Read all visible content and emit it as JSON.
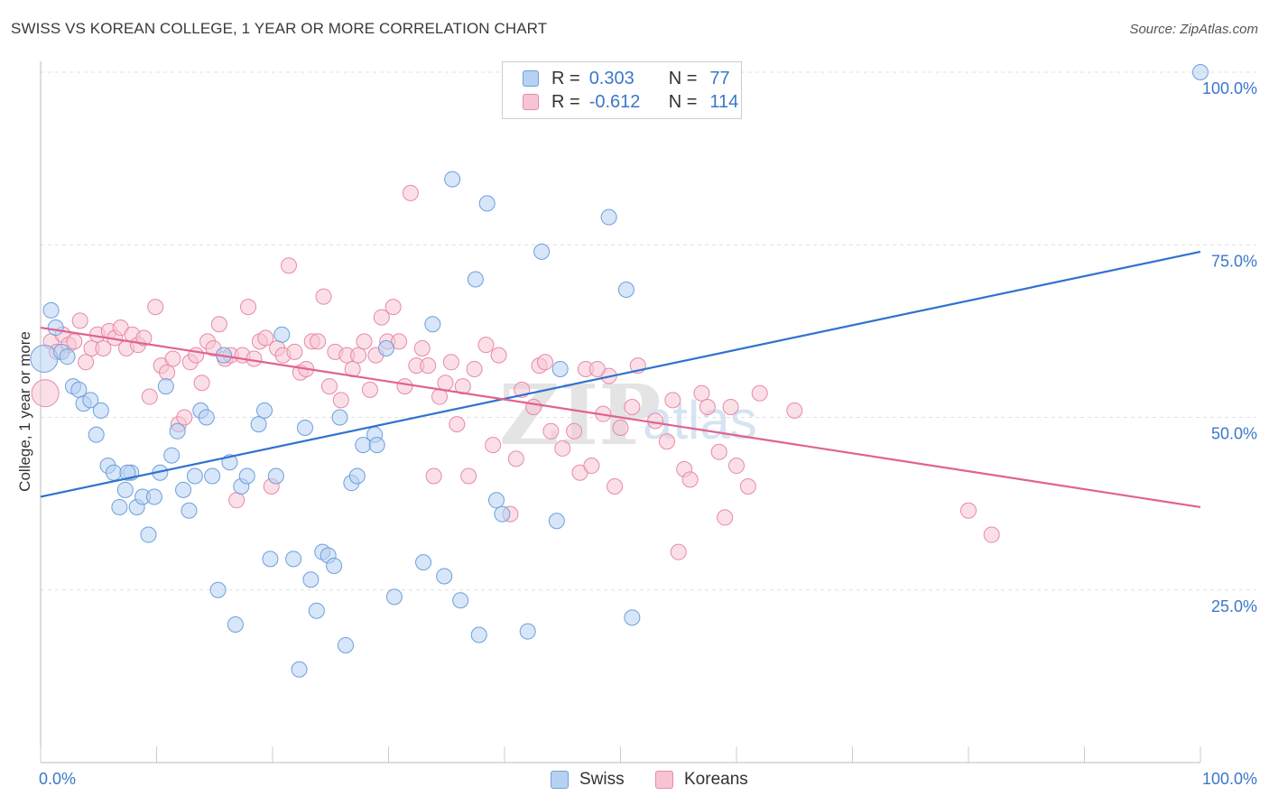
{
  "title": "SWISS VS KOREAN COLLEGE, 1 YEAR OR MORE CORRELATION CHART",
  "source": "Source: ZipAtlas.com",
  "watermark": {
    "zip": "ZIP",
    "atlas": "atlas"
  },
  "legend": {
    "r_label": "R =",
    "n_label": "N =",
    "rows": [
      {
        "r": "0.303",
        "n": "77"
      },
      {
        "r": "-0.612",
        "n": "114"
      }
    ]
  },
  "bottom_legend": [
    "Swiss",
    "Koreans"
  ],
  "colors": {
    "swiss_fill": "#b7d1f3",
    "swiss_stroke": "#6e9fdd",
    "swiss_line": "#2f72cf",
    "korean_fill": "#f8c4d4",
    "korean_stroke": "#e889a8",
    "korean_line": "#e0628e",
    "tick_label": "#3a78c9",
    "grid": "#e0e0e0"
  },
  "chart_data": {
    "type": "scatter",
    "title": "SWISS VS KOREAN COLLEGE, 1 YEAR OR MORE CORRELATION CHART",
    "xlabel": "",
    "ylabel": "College, 1 year or more",
    "xlim": [
      0,
      100
    ],
    "ylim": [
      0,
      100
    ],
    "x_tick_labels": [
      "0.0%",
      "100.0%"
    ],
    "y_ticks": [
      25,
      50,
      75,
      100
    ],
    "y_tick_labels": [
      "25.0%",
      "50.0%",
      "75.0%",
      "100.0%"
    ],
    "grid": true,
    "legend_position": "top-center",
    "series": [
      {
        "name": "Swiss",
        "r": 0.303,
        "n": 77,
        "trend": {
          "x": [
            0,
            100
          ],
          "y": [
            38.5,
            74.0
          ]
        },
        "points": [
          [
            0.3,
            58.5
          ],
          [
            0.9,
            65.5
          ],
          [
            1.3,
            63.0
          ],
          [
            1.8,
            59.5
          ],
          [
            2.3,
            58.8
          ],
          [
            2.8,
            54.5
          ],
          [
            3.3,
            54.0
          ],
          [
            3.7,
            52.0
          ],
          [
            4.3,
            52.5
          ],
          [
            4.8,
            47.5
          ],
          [
            5.2,
            51.0
          ],
          [
            5.8,
            43.0
          ],
          [
            6.3,
            42.0
          ],
          [
            6.8,
            37.0
          ],
          [
            7.3,
            39.5
          ],
          [
            7.8,
            42.0
          ],
          [
            8.3,
            37.0
          ],
          [
            8.8,
            38.5
          ],
          [
            9.3,
            33.0
          ],
          [
            9.8,
            38.5
          ],
          [
            10.3,
            42.0
          ],
          [
            10.8,
            54.5
          ],
          [
            11.3,
            44.5
          ],
          [
            11.8,
            48.0
          ],
          [
            12.3,
            39.5
          ],
          [
            12.8,
            36.5
          ],
          [
            13.3,
            41.5
          ],
          [
            13.8,
            51.0
          ],
          [
            14.3,
            50.0
          ],
          [
            14.8,
            41.5
          ],
          [
            15.3,
            25.0
          ],
          [
            15.8,
            59.0
          ],
          [
            16.3,
            43.5
          ],
          [
            16.8,
            20.0
          ],
          [
            17.3,
            40.0
          ],
          [
            17.8,
            41.5
          ],
          [
            18.8,
            49.0
          ],
          [
            19.3,
            51.0
          ],
          [
            19.8,
            29.5
          ],
          [
            20.3,
            41.5
          ],
          [
            20.8,
            62.0
          ],
          [
            21.8,
            29.5
          ],
          [
            22.3,
            13.5
          ],
          [
            22.8,
            48.5
          ],
          [
            23.3,
            26.5
          ],
          [
            23.8,
            22.0
          ],
          [
            24.3,
            30.5
          ],
          [
            24.8,
            30.0
          ],
          [
            25.3,
            28.5
          ],
          [
            25.8,
            50.0
          ],
          [
            26.3,
            17.0
          ],
          [
            26.8,
            40.5
          ],
          [
            27.3,
            41.5
          ],
          [
            27.8,
            46.0
          ],
          [
            28.8,
            47.5
          ],
          [
            29.8,
            60.0
          ],
          [
            33.0,
            29.0
          ],
          [
            33.8,
            63.5
          ],
          [
            34.8,
            27.0
          ],
          [
            35.5,
            84.5
          ],
          [
            36.2,
            23.5
          ],
          [
            37.5,
            70.0
          ],
          [
            37.8,
            18.5
          ],
          [
            38.5,
            81.0
          ],
          [
            39.3,
            38.0
          ],
          [
            39.8,
            36.0
          ],
          [
            42.0,
            19.0
          ],
          [
            43.2,
            74.0
          ],
          [
            44.8,
            57.0
          ],
          [
            44.5,
            35.0
          ],
          [
            49.0,
            79.0
          ],
          [
            50.5,
            68.5
          ],
          [
            51.0,
            21.0
          ],
          [
            30.5,
            24.0
          ],
          [
            29.0,
            46.0
          ],
          [
            7.5,
            42.0
          ],
          [
            100.0,
            100.0
          ]
        ]
      },
      {
        "name": "Koreans",
        "r": -0.612,
        "n": 114,
        "trend": {
          "x": [
            0,
            100
          ],
          "y": [
            63.0,
            37.0
          ]
        },
        "points": [
          [
            0.4,
            53.5
          ],
          [
            0.9,
            61.0
          ],
          [
            1.4,
            59.5
          ],
          [
            1.9,
            62.0
          ],
          [
            2.4,
            60.5
          ],
          [
            2.9,
            61.0
          ],
          [
            3.4,
            64.0
          ],
          [
            3.9,
            58.0
          ],
          [
            4.4,
            60.0
          ],
          [
            4.9,
            62.0
          ],
          [
            5.4,
            60.0
          ],
          [
            5.9,
            62.5
          ],
          [
            6.4,
            61.5
          ],
          [
            6.9,
            63.0
          ],
          [
            7.4,
            60.0
          ],
          [
            7.9,
            62.0
          ],
          [
            8.4,
            60.5
          ],
          [
            8.9,
            61.5
          ],
          [
            9.4,
            53.0
          ],
          [
            9.9,
            66.0
          ],
          [
            10.4,
            57.5
          ],
          [
            10.9,
            56.5
          ],
          [
            11.4,
            58.5
          ],
          [
            11.9,
            49.0
          ],
          [
            12.4,
            50.0
          ],
          [
            12.9,
            58.0
          ],
          [
            13.4,
            59.0
          ],
          [
            13.9,
            55.0
          ],
          [
            14.4,
            61.0
          ],
          [
            14.9,
            60.0
          ],
          [
            15.4,
            63.5
          ],
          [
            15.9,
            58.5
          ],
          [
            16.4,
            59.0
          ],
          [
            16.9,
            38.0
          ],
          [
            17.4,
            59.0
          ],
          [
            17.9,
            66.0
          ],
          [
            18.4,
            58.5
          ],
          [
            18.9,
            61.0
          ],
          [
            19.4,
            61.5
          ],
          [
            19.9,
            40.0
          ],
          [
            20.4,
            60.0
          ],
          [
            20.9,
            59.0
          ],
          [
            21.4,
            72.0
          ],
          [
            21.9,
            59.5
          ],
          [
            22.4,
            56.5
          ],
          [
            22.9,
            57.0
          ],
          [
            23.4,
            61.0
          ],
          [
            23.9,
            61.0
          ],
          [
            24.4,
            67.5
          ],
          [
            24.9,
            54.5
          ],
          [
            25.4,
            59.5
          ],
          [
            25.9,
            52.5
          ],
          [
            26.4,
            59.0
          ],
          [
            26.9,
            57.0
          ],
          [
            27.4,
            59.0
          ],
          [
            27.9,
            61.0
          ],
          [
            28.4,
            54.0
          ],
          [
            28.9,
            59.0
          ],
          [
            29.4,
            64.5
          ],
          [
            29.9,
            61.0
          ],
          [
            30.4,
            66.0
          ],
          [
            30.9,
            61.0
          ],
          [
            31.4,
            54.5
          ],
          [
            31.9,
            82.5
          ],
          [
            32.4,
            57.5
          ],
          [
            32.9,
            60.0
          ],
          [
            33.4,
            57.5
          ],
          [
            33.9,
            41.5
          ],
          [
            34.4,
            53.0
          ],
          [
            34.9,
            55.0
          ],
          [
            35.4,
            58.0
          ],
          [
            35.9,
            49.0
          ],
          [
            36.4,
            54.5
          ],
          [
            36.9,
            41.5
          ],
          [
            37.4,
            57.0
          ],
          [
            38.4,
            60.5
          ],
          [
            39.0,
            46.0
          ],
          [
            39.5,
            59.0
          ],
          [
            40.5,
            36.0
          ],
          [
            41.0,
            44.0
          ],
          [
            41.5,
            54.0
          ],
          [
            42.5,
            51.5
          ],
          [
            43.0,
            57.5
          ],
          [
            43.5,
            58.0
          ],
          [
            44.0,
            48.0
          ],
          [
            45.0,
            45.5
          ],
          [
            46.0,
            48.0
          ],
          [
            46.5,
            42.0
          ],
          [
            47.0,
            57.0
          ],
          [
            47.5,
            43.0
          ],
          [
            48.5,
            50.5
          ],
          [
            49.0,
            56.0
          ],
          [
            49.5,
            40.0
          ],
          [
            50.0,
            48.5
          ],
          [
            51.0,
            51.5
          ],
          [
            51.5,
            57.5
          ],
          [
            53.0,
            49.5
          ],
          [
            54.0,
            46.5
          ],
          [
            54.5,
            52.5
          ],
          [
            55.0,
            30.5
          ],
          [
            55.5,
            42.5
          ],
          [
            56.0,
            41.0
          ],
          [
            57.0,
            53.5
          ],
          [
            57.5,
            51.5
          ],
          [
            58.5,
            45.0
          ],
          [
            59.0,
            35.5
          ],
          [
            60.0,
            43.0
          ],
          [
            61.0,
            40.0
          ],
          [
            62.0,
            53.5
          ],
          [
            65.0,
            51.0
          ],
          [
            80.0,
            36.5
          ],
          [
            82.0,
            33.0
          ],
          [
            59.5,
            51.5
          ],
          [
            48.0,
            57.0
          ]
        ]
      }
    ]
  }
}
